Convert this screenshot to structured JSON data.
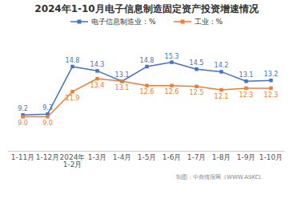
{
  "chart_data": {
    "type": "line",
    "title": "2024年1-10月电子信息制造固定资产投资增速情况",
    "categories": [
      "1-11月",
      "1-12月",
      "2024年\n1-2月",
      "1-3月",
      "1-4月",
      "1-5月",
      "1-6月",
      "1-7月",
      "1-8月",
      "1-9月",
      "1-10月"
    ],
    "series": [
      {
        "name": "电子信息制造业：%",
        "color": "#4472C4",
        "values": [
          9.2,
          9.3,
          14.8,
          14.3,
          13.1,
          14.8,
          15.3,
          14.5,
          14.2,
          13.1,
          13.2
        ]
      },
      {
        "name": "工业：%",
        "color": "#ED7D31",
        "values": [
          9.0,
          9.0,
          11.9,
          13.4,
          13.1,
          12.6,
          12.6,
          12.5,
          12.1,
          12.3,
          12.3
        ],
        "value_labels": [
          "9.0",
          "9.0",
          "11.9",
          "13.4",
          "13.1",
          "12.6",
          "12.6",
          "12.5",
          "12.1",
          "12.3",
          "12.3"
        ]
      }
    ],
    "ylim": [
      5,
      18
    ],
    "tick_labels": "x",
    "grid": false,
    "legend": "top",
    "marker": "square",
    "data_labels": true,
    "annotations": [
      "制图：中商情报网（WWW.ASKCI."
    ]
  }
}
